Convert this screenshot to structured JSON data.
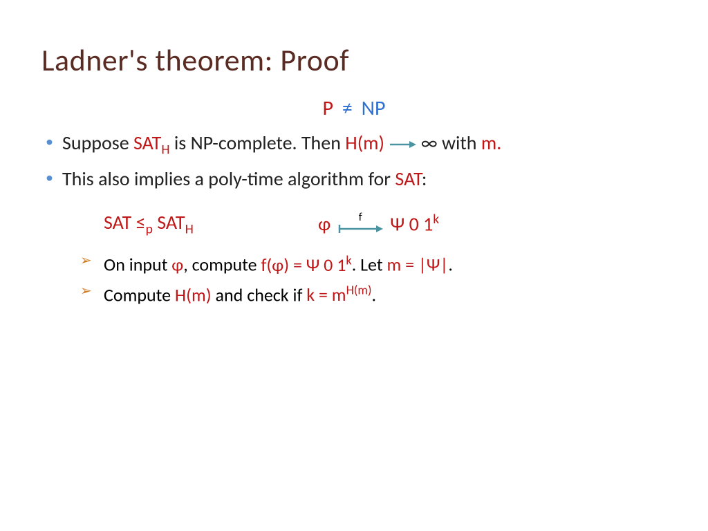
{
  "colors": {
    "title": "#5a2b22",
    "blue": "#2f6fd0",
    "red": "#c01818",
    "orange_chev": "#cf7a1e",
    "blue_chev": "#5a8fcf",
    "teal_arrow": "#4a93a0",
    "black": "#222222"
  },
  "fontsizes": {
    "title": 44,
    "pnp": 30,
    "body": 28,
    "sub": 26,
    "maplabel": 16
  },
  "title": "Ladner's theorem:  Proof",
  "pnp": {
    "p": "P",
    "neq": "≠",
    "np": "NP"
  },
  "line1": {
    "t1": "Suppose ",
    "sat": "SAT",
    "sub_h": "H",
    "t2": " is NP-complete.  Then ",
    "hm": "H(m)",
    "inf": "∞",
    "t3": " with ",
    "m": "m."
  },
  "line2": {
    "t1": "This also implies a poly-time algorithm for ",
    "sat": "SAT",
    "colon": ":"
  },
  "reduce": {
    "sat1": "SAT",
    "leq": " ≤",
    "sub_p": "p",
    "sp": " ",
    "sat2": "SAT",
    "sub_h": "H",
    "phi": "φ",
    "f": "f",
    "psi": "Ψ 0 1",
    "sup_k": "k"
  },
  "sub1": {
    "t1": "On input ",
    "phi": "φ",
    "t2": ", compute ",
    "f": "f(φ) = Ψ 0 1",
    "sup_k": "k",
    "t3": ". Let ",
    "m_eq": "m = |Ψ|",
    "dot": "."
  },
  "sub2": {
    "t1": "Compute ",
    "hm": "H(m)",
    "t2": " and check if ",
    "k_eq": "k = m",
    "sup_hm": "H(m)",
    "dot": "."
  }
}
